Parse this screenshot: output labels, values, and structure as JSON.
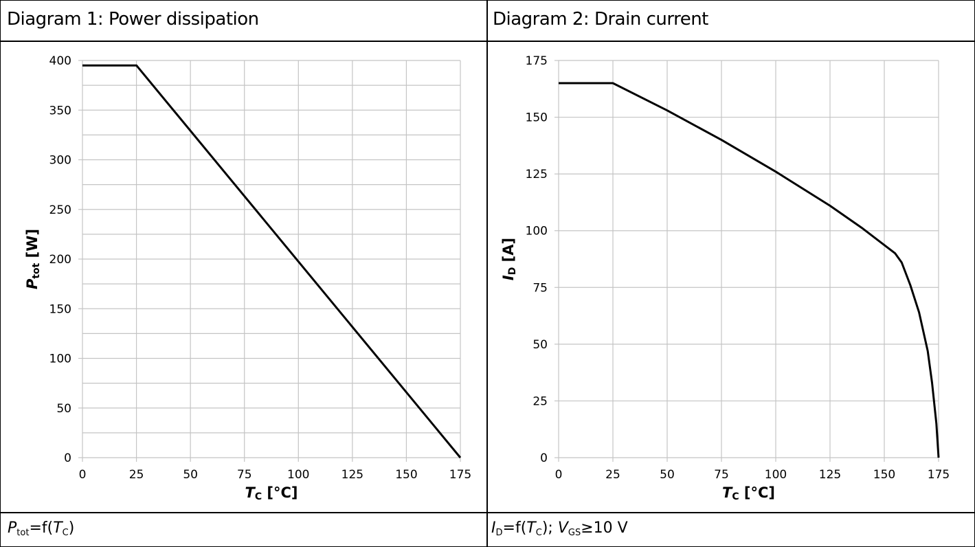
{
  "panels": [
    {
      "title": "Diagram 1: Power dissipation",
      "caption": {
        "sym": "P",
        "sub": "tot",
        "rest": "=f(",
        "sym2": "T",
        "sub2": "C",
        "tail": ")"
      }
    },
    {
      "title": "Diagram 2: Drain current",
      "caption": {
        "sym": "I",
        "sub": "D",
        "rest": "=f(",
        "sym2": "T",
        "sub2": "C",
        "tail": "); ",
        "sym3": "V",
        "sub3": "GS",
        "tail2": "≥10 V"
      }
    }
  ],
  "chart_data": [
    {
      "type": "line",
      "xlabel": {
        "sym": "T",
        "sub": "C",
        "unit": " [°C]"
      },
      "ylabel": {
        "sym": "P",
        "sub": "tot",
        "unit": " [W]"
      },
      "xlim": [
        0,
        175
      ],
      "ylim": [
        0,
        400
      ],
      "xticks": [
        0,
        25,
        50,
        75,
        100,
        125,
        150,
        175
      ],
      "yticks": [
        0,
        50,
        100,
        150,
        200,
        250,
        300,
        350,
        400
      ],
      "minor_y_step": 25,
      "grid": true,
      "series": [
        {
          "x": [
            0,
            25,
            175
          ],
          "y": [
            395,
            395,
            0
          ]
        }
      ]
    },
    {
      "type": "line",
      "xlabel": {
        "sym": "T",
        "sub": "C",
        "unit": " [°C]"
      },
      "ylabel": {
        "sym": "I",
        "sub": "D",
        "unit": " [A]"
      },
      "xlim": [
        0,
        175
      ],
      "ylim": [
        0,
        175
      ],
      "xticks": [
        0,
        25,
        50,
        75,
        100,
        125,
        150,
        175
      ],
      "yticks": [
        0,
        25,
        50,
        75,
        100,
        125,
        150,
        175
      ],
      "grid": true,
      "series": [
        {
          "x": [
            0,
            25,
            50,
            75,
            100,
            125,
            140,
            155,
            158,
            162,
            166,
            170,
            172,
            174,
            175
          ],
          "y": [
            165,
            165,
            153,
            140,
            126,
            111,
            101,
            90,
            86,
            76,
            64,
            47,
            33,
            15,
            0
          ]
        }
      ]
    }
  ]
}
